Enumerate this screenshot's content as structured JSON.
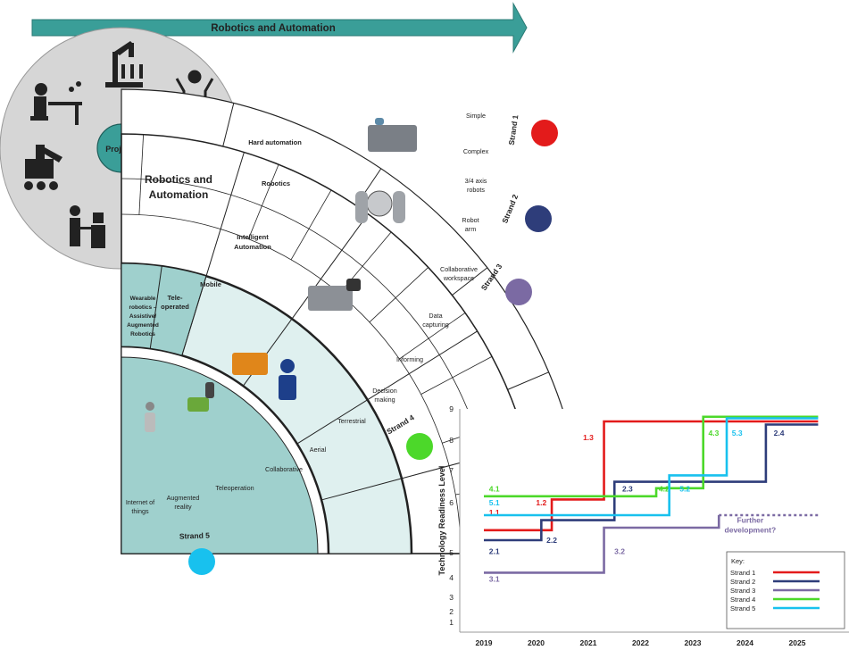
{
  "banner": {
    "title": "Robotics and Automation"
  },
  "hub": {
    "projects_label": "Projects",
    "core_line1": "Robotics and",
    "core_line2": "Automation"
  },
  "rings": {
    "inner": [
      "Hard automation",
      "Robotics",
      "Intelligent",
      "Automation",
      "Mobile",
      "Tele-",
      "operated",
      "Wearable",
      "robotics –",
      "Assistive/",
      "Augmented",
      "Robotics"
    ],
    "outer": [
      "Simple",
      "Complex",
      "3/4 axis",
      "robots",
      "Robot",
      "arm",
      "Collaborative",
      "workspace",
      "Data",
      "capturing",
      "Informing",
      "Decision",
      "making",
      "Terrestrial",
      "Aerial",
      "Collaborative",
      "Teleoperation",
      "Augmented",
      "reality",
      "Internet of",
      "things"
    ],
    "strands": [
      "Strand 1",
      "Strand 2",
      "Strand 3",
      "Strand 4",
      "Strand 5"
    ]
  },
  "colors": {
    "teal": "#3a9e98",
    "teal_light": "#9fd0cd",
    "teal_pale": "#dff0ef",
    "gray_circle": "#d6d6d6",
    "s1": "#e31b1b",
    "s2": "#2e3d7a",
    "s3": "#7b6aa3",
    "s4": "#4cd82a",
    "s5": "#18c1ee"
  },
  "chart_data": {
    "type": "line",
    "title": "",
    "xlabel": "",
    "ylabel": "Technology Readiness Level",
    "x_ticks": [
      "2019",
      "2020",
      "2021",
      "2022",
      "2023",
      "2024",
      "2025"
    ],
    "y_ticks": [
      "1",
      "2",
      "3",
      "4",
      "5",
      "6",
      "7",
      "8",
      "9"
    ],
    "ylim": [
      1,
      9
    ],
    "legend": {
      "title": "Key:",
      "entries": [
        "Strand 1",
        "Strand 2",
        "Strand 3",
        "Strand 4",
        "Strand 5"
      ]
    },
    "series": [
      {
        "name": "Strand 1",
        "color": "#e31b1b",
        "points": [
          [
            2019,
            5.45
          ],
          [
            2020.3,
            5.45
          ],
          [
            2020.3,
            6.1
          ],
          [
            2021.3,
            6.1
          ],
          [
            2021.3,
            8.6
          ],
          [
            2025.4,
            8.6
          ]
        ],
        "labels": [
          {
            "text": "1.1",
            "x": 2019.2,
            "y": 5.75
          },
          {
            "text": "1.2",
            "x": 2020.1,
            "y": 5.95
          },
          {
            "text": "1.3",
            "x": 2021.0,
            "y": 8.0
          }
        ]
      },
      {
        "name": "Strand 2",
        "color": "#2e3d7a",
        "points": [
          [
            2019,
            5.25
          ],
          [
            2020.1,
            5.25
          ],
          [
            2020.1,
            5.65
          ],
          [
            2021.5,
            5.65
          ],
          [
            2021.5,
            6.65
          ],
          [
            2024.4,
            6.65
          ],
          [
            2024.4,
            8.5
          ],
          [
            2025.4,
            8.5
          ]
        ],
        "labels": [
          {
            "text": "2.1",
            "x": 2019.2,
            "y": 4.95
          },
          {
            "text": "2.2",
            "x": 2020.3,
            "y": 5.2
          },
          {
            "text": "2.3",
            "x": 2021.75,
            "y": 6.35
          },
          {
            "text": "2.4",
            "x": 2024.65,
            "y": 8.15
          }
        ]
      },
      {
        "name": "Strand 3",
        "color": "#7b6aa3",
        "points": [
          [
            2019,
            4.2
          ],
          [
            2021.3,
            4.2
          ],
          [
            2021.3,
            5.5
          ],
          [
            2023.5,
            5.5
          ],
          [
            2023.5,
            5.75
          ]
        ],
        "labels": [
          {
            "text": "3.1",
            "x": 2019.2,
            "y": 3.8
          },
          {
            "text": "3.2",
            "x": 2021.6,
            "y": 4.95
          },
          {
            "text": "Further",
            "x": 2024.1,
            "y": 5.6
          },
          {
            "text": "development?",
            "x": 2024.1,
            "y": 5.4
          }
        ]
      },
      {
        "name": "Strand 4",
        "color": "#4cd82a",
        "points": [
          [
            2019,
            6.2
          ],
          [
            2022.3,
            6.2
          ],
          [
            2022.3,
            6.45
          ],
          [
            2023.2,
            6.45
          ],
          [
            2023.2,
            8.75
          ],
          [
            2025.4,
            8.75
          ]
        ],
        "labels": [
          {
            "text": "4.1",
            "x": 2019.2,
            "y": 6.35
          },
          {
            "text": "4.2",
            "x": 2022.45,
            "y": 6.35
          },
          {
            "text": "4.3",
            "x": 2023.4,
            "y": 8.15
          }
        ]
      },
      {
        "name": "Strand 5",
        "color": "#18c1ee",
        "points": [
          [
            2019,
            5.75
          ],
          [
            2022.55,
            5.75
          ],
          [
            2022.55,
            6.85
          ],
          [
            2023.65,
            6.85
          ],
          [
            2023.65,
            8.7
          ],
          [
            2025.4,
            8.7
          ]
        ],
        "labels": [
          {
            "text": "5.1",
            "x": 2019.2,
            "y": 5.95
          },
          {
            "text": "5.2",
            "x": 2022.85,
            "y": 6.35
          },
          {
            "text": "5.3",
            "x": 2023.85,
            "y": 8.15
          }
        ]
      }
    ],
    "further_development": {
      "color": "#7b6aa3",
      "points": [
        [
          2023.5,
          5.75
        ],
        [
          2025.4,
          5.75
        ]
      ]
    }
  }
}
